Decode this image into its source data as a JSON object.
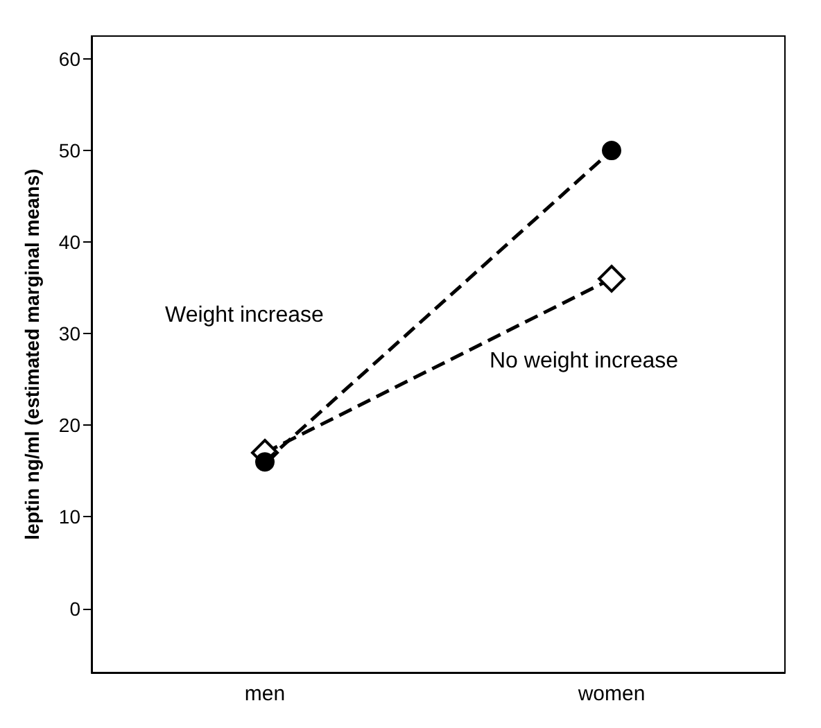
{
  "chart_data": {
    "type": "line",
    "ylabel": "leptin ng/ml (estimated marginal means)",
    "categories": [
      "men",
      "women"
    ],
    "series": [
      {
        "name": "Weight increase",
        "color": "#000000",
        "values": [
          16,
          50
        ],
        "marker": "circle"
      },
      {
        "name": "No weight increase",
        "color": "#000000",
        "values": [
          17,
          36
        ],
        "marker": "diamond"
      }
    ],
    "ylim": [
      -7,
      62.5
    ],
    "yticks": [
      0,
      10,
      20,
      30,
      40,
      50,
      60
    ],
    "grid": false,
    "legend": false,
    "line_style": "dashed"
  }
}
